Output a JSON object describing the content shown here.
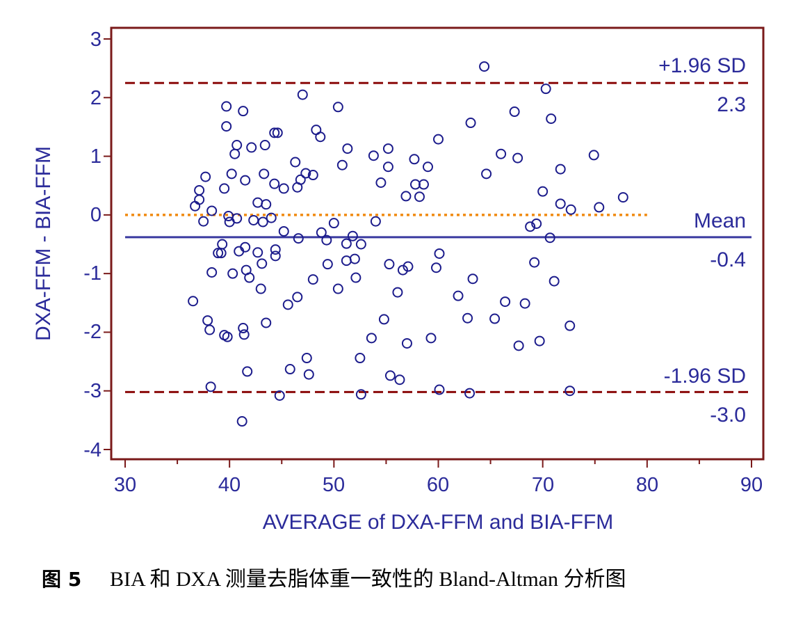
{
  "chart_data": {
    "type": "scatter",
    "title": "",
    "xlabel": "AVERAGE of DXA-FFM and BIA-FFM",
    "ylabel": "DXA-FFM - BIA-FFM",
    "xlim": [
      30,
      90
    ],
    "ylim": [
      -4,
      3
    ],
    "x_ticks": [
      "30",
      "40",
      "50",
      "60",
      "70",
      "80",
      "90"
    ],
    "y_ticks": [
      "3",
      "2",
      "1",
      "0",
      "-1",
      "-2",
      "-3",
      "-4"
    ],
    "grid": false,
    "colors": {
      "frame": "#7a1a1a",
      "limits": "#8b0a0a",
      "mean": "#3a3aa0",
      "zero": "#f08a10",
      "points": "#1c1c8c",
      "text": "#2b2b9a"
    },
    "reference_lines": [
      {
        "label": "+1.96 SD",
        "value_label": "2.3",
        "y": 2.25,
        "style": "dashed"
      },
      {
        "label": "Mean",
        "value_label": "-0.4",
        "y": -0.38,
        "style": "solid"
      },
      {
        "label": "-1.96 SD",
        "value_label": "-3.0",
        "y": -3.02,
        "style": "dashed"
      },
      {
        "label": "",
        "value_label": "",
        "y": 0,
        "x_range": [
          30,
          80
        ],
        "style": "dotted"
      }
    ],
    "points": [
      [
        36.5,
        -1.47
      ],
      [
        36.7,
        0.15
      ],
      [
        37.1,
        0.42
      ],
      [
        37.1,
        0.26
      ],
      [
        37.5,
        -0.11
      ],
      [
        37.7,
        0.65
      ],
      [
        37.9,
        -1.8
      ],
      [
        38.1,
        -1.96
      ],
      [
        38.2,
        -2.93
      ],
      [
        38.3,
        -0.98
      ],
      [
        38.3,
        0.07
      ],
      [
        38.9,
        -0.65
      ],
      [
        39.2,
        -0.65
      ],
      [
        39.3,
        -0.5
      ],
      [
        39.5,
        0.45
      ],
      [
        39.5,
        -2.05
      ],
      [
        39.7,
        1.85
      ],
      [
        39.7,
        1.51
      ],
      [
        39.8,
        -2.08
      ],
      [
        39.9,
        -0.02
      ],
      [
        40.0,
        -0.12
      ],
      [
        40.2,
        0.7
      ],
      [
        40.3,
        -1.0
      ],
      [
        40.5,
        1.04
      ],
      [
        40.7,
        1.19
      ],
      [
        40.7,
        -0.06
      ],
      [
        40.9,
        -0.62
      ],
      [
        41.3,
        1.77
      ],
      [
        41.3,
        -1.93
      ],
      [
        41.4,
        -2.04
      ],
      [
        41.5,
        0.59
      ],
      [
        41.5,
        -0.55
      ],
      [
        41.6,
        -0.94
      ],
      [
        41.7,
        -2.67
      ],
      [
        41.9,
        -1.07
      ],
      [
        42.1,
        1.15
      ],
      [
        42.3,
        -0.09
      ],
      [
        42.7,
        -0.64
      ],
      [
        42.7,
        0.21
      ],
      [
        41.2,
        -3.52
      ],
      [
        43.0,
        -1.26
      ],
      [
        43.1,
        -0.83
      ],
      [
        43.2,
        -0.12
      ],
      [
        43.3,
        0.7
      ],
      [
        43.4,
        1.19
      ],
      [
        43.5,
        0.18
      ],
      [
        43.5,
        -1.84
      ],
      [
        44.0,
        -0.05
      ],
      [
        44.3,
        1.4
      ],
      [
        44.3,
        0.53
      ],
      [
        44.4,
        -0.59
      ],
      [
        44.4,
        -0.7
      ],
      [
        44.6,
        1.4
      ],
      [
        44.8,
        -3.08
      ],
      [
        45.2,
        -0.28
      ],
      [
        45.2,
        0.45
      ],
      [
        45.6,
        -1.53
      ],
      [
        45.8,
        -2.63
      ],
      [
        46.3,
        0.9
      ],
      [
        46.5,
        0.47
      ],
      [
        46.5,
        -1.4
      ],
      [
        46.6,
        -0.4
      ],
      [
        46.8,
        0.6
      ],
      [
        47.0,
        2.05
      ],
      [
        47.3,
        0.71
      ],
      [
        47.4,
        -2.44
      ],
      [
        47.6,
        -2.72
      ],
      [
        48.0,
        0.68
      ],
      [
        48.0,
        -1.1
      ],
      [
        48.3,
        1.45
      ],
      [
        48.7,
        1.33
      ],
      [
        48.8,
        -0.3
      ],
      [
        49.3,
        -0.43
      ],
      [
        49.4,
        -0.84
      ],
      [
        50.0,
        -0.14
      ],
      [
        50.4,
        1.84
      ],
      [
        50.4,
        -1.26
      ],
      [
        50.8,
        0.85
      ],
      [
        51.2,
        -0.49
      ],
      [
        51.2,
        -0.78
      ],
      [
        51.3,
        1.13
      ],
      [
        51.8,
        -0.36
      ],
      [
        52.0,
        -0.75
      ],
      [
        52.1,
        -1.07
      ],
      [
        52.5,
        -2.44
      ],
      [
        52.6,
        -0.5
      ],
      [
        52.6,
        -3.06
      ],
      [
        53.6,
        -2.1
      ],
      [
        53.8,
        1.01
      ],
      [
        54.0,
        -0.11
      ],
      [
        54.5,
        0.55
      ],
      [
        54.8,
        -1.78
      ],
      [
        55.2,
        0.82
      ],
      [
        55.2,
        1.13
      ],
      [
        55.3,
        -0.84
      ],
      [
        55.4,
        -2.74
      ],
      [
        56.1,
        -1.32
      ],
      [
        56.3,
        -2.81
      ],
      [
        56.6,
        -0.94
      ],
      [
        56.9,
        0.32
      ],
      [
        57.0,
        -2.19
      ],
      [
        57.1,
        -0.88
      ],
      [
        57.7,
        0.95
      ],
      [
        57.8,
        0.52
      ],
      [
        58.2,
        0.31
      ],
      [
        58.6,
        0.52
      ],
      [
        59.0,
        0.82
      ],
      [
        59.3,
        -2.1
      ],
      [
        59.8,
        -0.9
      ],
      [
        60.0,
        1.29
      ],
      [
        60.1,
        -0.66
      ],
      [
        60.1,
        -2.98
      ],
      [
        61.9,
        -1.38
      ],
      [
        62.8,
        -1.76
      ],
      [
        63.0,
        -3.04
      ],
      [
        63.1,
        1.57
      ],
      [
        63.3,
        -1.09
      ],
      [
        64.4,
        2.53
      ],
      [
        64.6,
        0.7
      ],
      [
        65.4,
        -1.77
      ],
      [
        66.0,
        1.04
      ],
      [
        66.4,
        -1.48
      ],
      [
        67.3,
        1.76
      ],
      [
        67.6,
        0.97
      ],
      [
        67.7,
        -2.23
      ],
      [
        68.3,
        -1.51
      ],
      [
        68.8,
        -0.2
      ],
      [
        69.2,
        -0.81
      ],
      [
        69.4,
        -0.15
      ],
      [
        69.7,
        -2.15
      ],
      [
        70.0,
        0.4
      ],
      [
        70.3,
        2.15
      ],
      [
        70.7,
        -0.39
      ],
      [
        70.8,
        1.64
      ],
      [
        71.1,
        -1.13
      ],
      [
        71.7,
        0.78
      ],
      [
        71.7,
        0.19
      ],
      [
        72.6,
        -1.89
      ],
      [
        72.6,
        -3.0
      ],
      [
        72.7,
        0.09
      ],
      [
        74.9,
        1.02
      ],
      [
        75.4,
        0.13
      ],
      [
        77.7,
        0.3
      ]
    ]
  },
  "caption": {
    "figure_label": "图 5",
    "text": "BIA 和 DXA 测量去脂体重一致性的 Bland-Altman 分析图"
  }
}
